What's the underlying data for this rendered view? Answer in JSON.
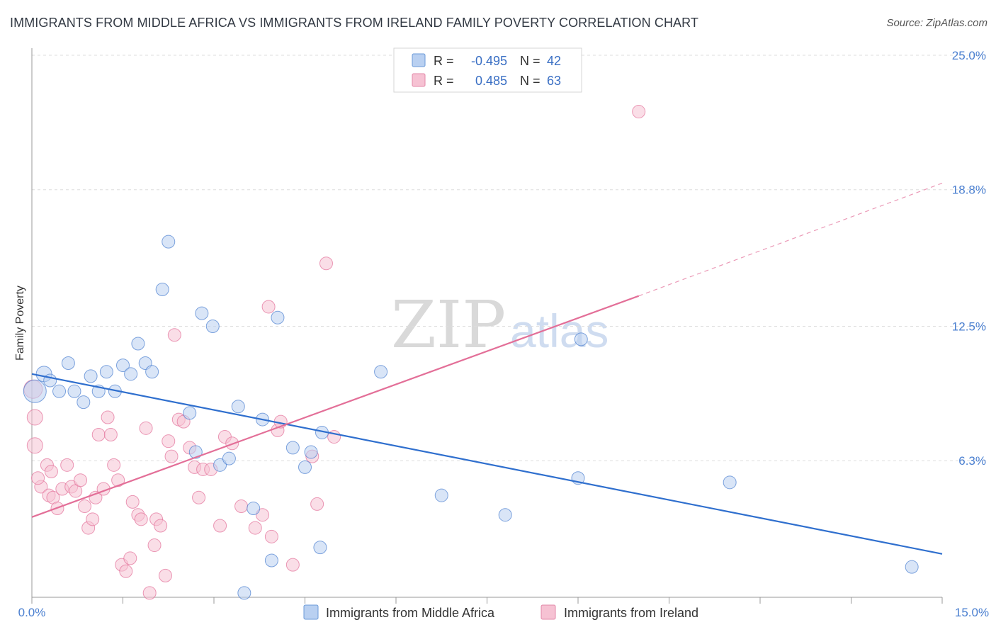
{
  "title": "IMMIGRANTS FROM MIDDLE AFRICA VS IMMIGRANTS FROM IRELAND FAMILY POVERTY CORRELATION CHART",
  "source": "Source: ZipAtlas.com",
  "watermark": {
    "zip": "ZIP",
    "atlas": "atlas"
  },
  "colors": {
    "blue": "#4a7fd0",
    "blue_fill": "#b9d0f1",
    "blue_line": "#2f6fce",
    "pink": "#e36f98",
    "pink_fill": "#f6c2d3",
    "grid": "#dddddd",
    "tick_text": "#4a7fd0"
  },
  "legend": {
    "rows": [
      {
        "r_label": "R =",
        "r_value": "-0.495",
        "n_label": "N =",
        "n_value": "42",
        "color": "blue"
      },
      {
        "r_label": "R =",
        "r_value": "0.485",
        "n_label": "N =",
        "n_value": "63",
        "color": "pink"
      }
    ]
  },
  "chart_data": {
    "type": "scatter",
    "title": "IMMIGRANTS FROM MIDDLE AFRICA VS IMMIGRANTS FROM IRELAND FAMILY POVERTY CORRELATION CHART",
    "xlabel": "",
    "ylabel": "Family Poverty",
    "xlim": [
      0,
      15
    ],
    "ylim": [
      0,
      25
    ],
    "x_tick_labels": {
      "left": "0.0%",
      "right": "15.0%"
    },
    "y_ticks": [
      {
        "value": 6.3,
        "label": "6.3%"
      },
      {
        "value": 12.5,
        "label": "12.5%"
      },
      {
        "value": 18.8,
        "label": "18.8%"
      },
      {
        "value": 25.0,
        "label": "25.0%"
      }
    ],
    "series": [
      {
        "name": "Immigrants from Middle Africa",
        "color": "blue",
        "R": -0.495,
        "N": 42,
        "trend": {
          "x0": 0,
          "y0": 10.3,
          "x1": 15,
          "y1": 2.0,
          "dashed_to": null
        },
        "points": [
          {
            "x": 0.05,
            "y": 9.5,
            "s": 16
          },
          {
            "x": 0.2,
            "y": 10.3,
            "s": 11
          },
          {
            "x": 0.3,
            "y": 10.0,
            "s": 9
          },
          {
            "x": 0.45,
            "y": 9.5,
            "s": 9
          },
          {
            "x": 0.6,
            "y": 10.8,
            "s": 9
          },
          {
            "x": 0.7,
            "y": 9.5,
            "s": 9
          },
          {
            "x": 0.85,
            "y": 9.0,
            "s": 9
          },
          {
            "x": 0.97,
            "y": 10.2,
            "s": 9
          },
          {
            "x": 1.1,
            "y": 9.5,
            "s": 9
          },
          {
            "x": 1.23,
            "y": 10.4,
            "s": 9
          },
          {
            "x": 1.37,
            "y": 9.5,
            "s": 9
          },
          {
            "x": 1.5,
            "y": 10.7,
            "s": 9
          },
          {
            "x": 1.63,
            "y": 10.3,
            "s": 9
          },
          {
            "x": 1.75,
            "y": 11.7,
            "s": 9
          },
          {
            "x": 1.87,
            "y": 10.8,
            "s": 9
          },
          {
            "x": 1.98,
            "y": 10.4,
            "s": 9
          },
          {
            "x": 2.15,
            "y": 14.2,
            "s": 9
          },
          {
            "x": 2.25,
            "y": 16.4,
            "s": 9
          },
          {
            "x": 2.6,
            "y": 8.5,
            "s": 9
          },
          {
            "x": 2.7,
            "y": 6.7,
            "s": 9
          },
          {
            "x": 2.8,
            "y": 13.1,
            "s": 9
          },
          {
            "x": 2.98,
            "y": 12.5,
            "s": 9
          },
          {
            "x": 3.1,
            "y": 6.1,
            "s": 9
          },
          {
            "x": 3.25,
            "y": 6.4,
            "s": 9
          },
          {
            "x": 3.4,
            "y": 8.8,
            "s": 9
          },
          {
            "x": 3.5,
            "y": 0.2,
            "s": 9
          },
          {
            "x": 3.65,
            "y": 4.1,
            "s": 9
          },
          {
            "x": 3.8,
            "y": 8.2,
            "s": 9
          },
          {
            "x": 3.95,
            "y": 1.7,
            "s": 9
          },
          {
            "x": 4.05,
            "y": 12.9,
            "s": 9
          },
          {
            "x": 4.3,
            "y": 6.9,
            "s": 9
          },
          {
            "x": 4.5,
            "y": 6.0,
            "s": 9
          },
          {
            "x": 4.6,
            "y": 6.7,
            "s": 9
          },
          {
            "x": 4.75,
            "y": 2.3,
            "s": 9
          },
          {
            "x": 4.78,
            "y": 7.6,
            "s": 9
          },
          {
            "x": 5.75,
            "y": 10.4,
            "s": 9
          },
          {
            "x": 6.75,
            "y": 4.7,
            "s": 9
          },
          {
            "x": 7.8,
            "y": 3.8,
            "s": 9
          },
          {
            "x": 9.0,
            "y": 5.5,
            "s": 9
          },
          {
            "x": 9.05,
            "y": 11.9,
            "s": 9
          },
          {
            "x": 11.5,
            "y": 5.3,
            "s": 9
          },
          {
            "x": 14.5,
            "y": 1.4,
            "s": 9
          }
        ]
      },
      {
        "name": "Immigrants from Ireland",
        "color": "pink",
        "R": 0.485,
        "N": 63,
        "trend": {
          "x0": 0,
          "y0": 3.7,
          "x1": 10.0,
          "y1": 13.9,
          "dashed_to": {
            "x": 15,
            "y": 19.1
          }
        },
        "points": [
          {
            "x": 0.02,
            "y": 9.6,
            "s": 13
          },
          {
            "x": 0.05,
            "y": 8.3,
            "s": 11
          },
          {
            "x": 0.05,
            "y": 7.0,
            "s": 11
          },
          {
            "x": 0.15,
            "y": 5.1,
            "s": 9
          },
          {
            "x": 0.25,
            "y": 6.1,
            "s": 9
          },
          {
            "x": 0.28,
            "y": 4.7,
            "s": 9
          },
          {
            "x": 0.35,
            "y": 4.6,
            "s": 9
          },
          {
            "x": 0.42,
            "y": 4.1,
            "s": 9
          },
          {
            "x": 0.5,
            "y": 5.0,
            "s": 9
          },
          {
            "x": 0.58,
            "y": 6.1,
            "s": 9
          },
          {
            "x": 0.65,
            "y": 5.1,
            "s": 9
          },
          {
            "x": 0.72,
            "y": 4.9,
            "s": 9
          },
          {
            "x": 0.8,
            "y": 5.4,
            "s": 9
          },
          {
            "x": 0.87,
            "y": 4.2,
            "s": 9
          },
          {
            "x": 0.93,
            "y": 3.2,
            "s": 9
          },
          {
            "x": 1.0,
            "y": 3.6,
            "s": 9
          },
          {
            "x": 1.05,
            "y": 4.6,
            "s": 9
          },
          {
            "x": 1.1,
            "y": 7.5,
            "s": 9
          },
          {
            "x": 1.18,
            "y": 5.0,
            "s": 9
          },
          {
            "x": 1.25,
            "y": 8.3,
            "s": 9
          },
          {
            "x": 1.3,
            "y": 7.5,
            "s": 9
          },
          {
            "x": 1.35,
            "y": 6.1,
            "s": 9
          },
          {
            "x": 1.42,
            "y": 5.4,
            "s": 9
          },
          {
            "x": 1.48,
            "y": 1.5,
            "s": 9
          },
          {
            "x": 1.55,
            "y": 1.2,
            "s": 9
          },
          {
            "x": 1.62,
            "y": 1.8,
            "s": 9
          },
          {
            "x": 1.66,
            "y": 4.4,
            "s": 9
          },
          {
            "x": 1.75,
            "y": 3.8,
            "s": 9
          },
          {
            "x": 1.8,
            "y": 3.6,
            "s": 9
          },
          {
            "x": 1.88,
            "y": 7.8,
            "s": 9
          },
          {
            "x": 1.94,
            "y": 0.2,
            "s": 9
          },
          {
            "x": 2.02,
            "y": 2.4,
            "s": 9
          },
          {
            "x": 2.05,
            "y": 3.6,
            "s": 9
          },
          {
            "x": 2.12,
            "y": 3.3,
            "s": 9
          },
          {
            "x": 2.2,
            "y": 1.0,
            "s": 9
          },
          {
            "x": 2.25,
            "y": 7.2,
            "s": 9
          },
          {
            "x": 2.3,
            "y": 6.5,
            "s": 9
          },
          {
            "x": 2.35,
            "y": 12.1,
            "s": 9
          },
          {
            "x": 2.42,
            "y": 8.2,
            "s": 9
          },
          {
            "x": 2.5,
            "y": 8.1,
            "s": 9
          },
          {
            "x": 2.6,
            "y": 6.9,
            "s": 9
          },
          {
            "x": 2.68,
            "y": 6.0,
            "s": 9
          },
          {
            "x": 2.75,
            "y": 4.6,
            "s": 9
          },
          {
            "x": 2.82,
            "y": 5.9,
            "s": 9
          },
          {
            "x": 2.95,
            "y": 5.9,
            "s": 9
          },
          {
            "x": 3.1,
            "y": 3.3,
            "s": 9
          },
          {
            "x": 3.18,
            "y": 7.4,
            "s": 9
          },
          {
            "x": 3.3,
            "y": 7.1,
            "s": 9
          },
          {
            "x": 3.45,
            "y": 4.2,
            "s": 9
          },
          {
            "x": 3.68,
            "y": 3.2,
            "s": 9
          },
          {
            "x": 3.8,
            "y": 3.8,
            "s": 9
          },
          {
            "x": 3.9,
            "y": 13.4,
            "s": 9
          },
          {
            "x": 3.95,
            "y": 2.8,
            "s": 9
          },
          {
            "x": 4.05,
            "y": 7.7,
            "s": 9
          },
          {
            "x": 4.1,
            "y": 8.1,
            "s": 9
          },
          {
            "x": 4.3,
            "y": 1.5,
            "s": 9
          },
          {
            "x": 4.62,
            "y": 6.5,
            "s": 9
          },
          {
            "x": 4.7,
            "y": 4.3,
            "s": 9
          },
          {
            "x": 4.85,
            "y": 15.4,
            "s": 9
          },
          {
            "x": 4.98,
            "y": 7.4,
            "s": 9
          },
          {
            "x": 10.0,
            "y": 22.4,
            "s": 9
          },
          {
            "x": 0.1,
            "y": 5.5,
            "s": 9
          },
          {
            "x": 0.32,
            "y": 5.8,
            "s": 9
          }
        ]
      }
    ]
  }
}
